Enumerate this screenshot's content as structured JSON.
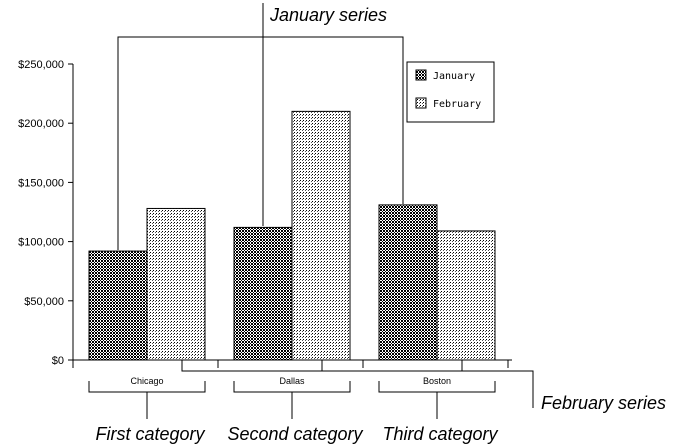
{
  "chart_data": {
    "type": "bar",
    "categories": [
      "Chicago",
      "Dallas",
      "Boston"
    ],
    "series": [
      {
        "name": "January",
        "values": [
          92000,
          112000,
          131000
        ],
        "pattern": "dense-crosshatch"
      },
      {
        "name": "February",
        "values": [
          128000,
          210000,
          109000
        ],
        "pattern": "light-dots"
      }
    ],
    "y_ticks": [
      0,
      50000,
      100000,
      150000,
      200000,
      250000
    ],
    "y_tick_labels": [
      "$0",
      "$50,000",
      "$100,000",
      "$150,000",
      "$200,000",
      "$250,000"
    ],
    "ylim": [
      0,
      250000
    ],
    "title": "",
    "xlabel": "",
    "ylabel": "",
    "grid": false,
    "legend": {
      "position": "top-right",
      "entries": [
        "January",
        "February"
      ]
    },
    "annotations": {
      "january_series": "January series",
      "february_series": "February series",
      "category_labels": [
        "First category",
        "Second category",
        "Third category"
      ]
    }
  },
  "colors": {
    "ink": "#000000",
    "background": "#ffffff"
  }
}
